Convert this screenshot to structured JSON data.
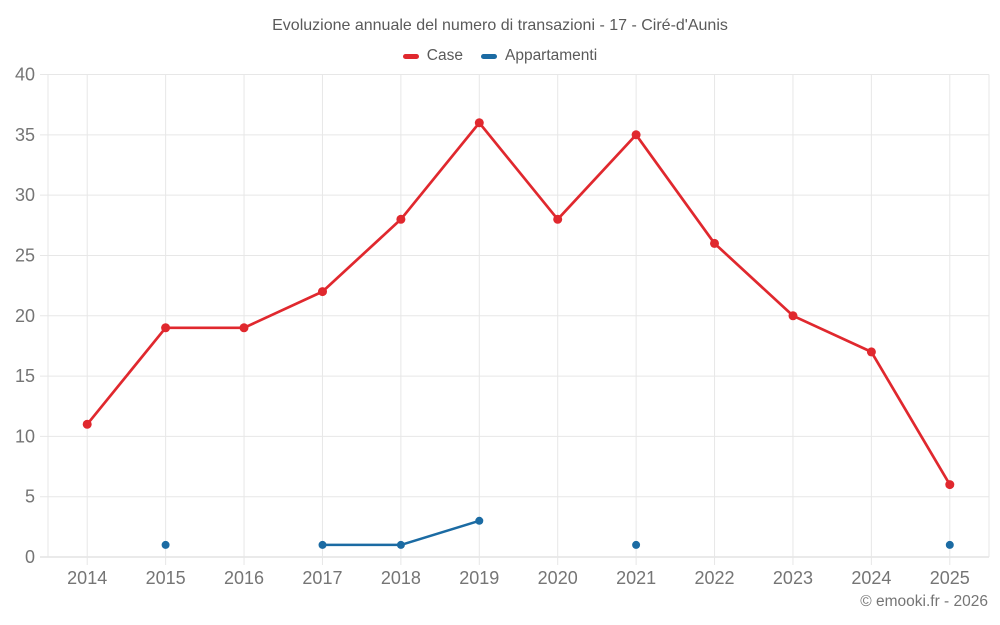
{
  "header": {
    "title": "Evoluzione annuale del numero di transazioni - 17 - Ciré-d'Aunis"
  },
  "footer": {
    "credit": "© emooki.fr - 2026"
  },
  "colors": {
    "case_red": "#e0282e",
    "appartamenti_blue": "#1b6ba3",
    "grid": "#e7e7e7",
    "axis_line": "#d4d4d4",
    "tick_label": "#757575",
    "title_text": "#5a5a5a"
  },
  "chart_data": {
    "type": "line",
    "title": "Evoluzione annuale del numero di transazioni - 17 - Ciré-d'Aunis",
    "xlabel": "",
    "ylabel": "",
    "categories": [
      "2014",
      "2015",
      "2016",
      "2017",
      "2018",
      "2019",
      "2020",
      "2021",
      "2022",
      "2023",
      "2024",
      "2025"
    ],
    "series": [
      {
        "name": "Case",
        "color": "#e0282e",
        "point_radius": 4.5,
        "line_width": 2.7,
        "values": [
          11,
          19,
          19,
          22,
          28,
          36,
          28,
          35,
          26,
          20,
          17,
          6
        ]
      },
      {
        "name": "Appartamenti",
        "color": "#1b6ba3",
        "point_radius": 4,
        "line_width": 2.5,
        "values": [
          null,
          1,
          null,
          1,
          1,
          3,
          null,
          1,
          null,
          null,
          null,
          1
        ]
      }
    ],
    "ylim": [
      0,
      40
    ],
    "ytick_step": 5,
    "grid": true,
    "legend_position": "top"
  }
}
